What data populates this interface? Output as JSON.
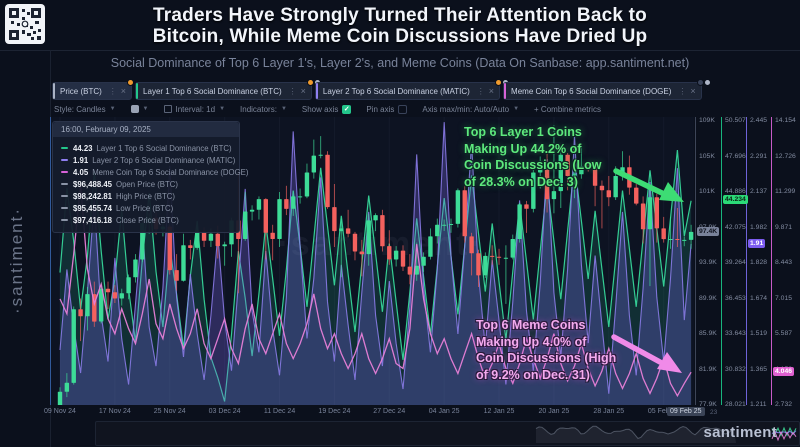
{
  "header": {
    "title_line1": "Traders Have Strongly Turned Their Attention Back to",
    "title_line2": "Bitcoin, While Meme Coin Discussions Have Dried Up",
    "subtitle": "Social Dominance of Top 6 Layer 1's, Layer 2's, and Meme Coins (Data On Sanbase: app.santiment.net)"
  },
  "brand": {
    "vertical_text": "·santiment·",
    "watermark": "·santiment·",
    "minimap_text": "santiment"
  },
  "tabs": [
    {
      "name": "tab-price-btc",
      "label": "Price (BTC)",
      "bar_color": "#aab3c5",
      "active": true,
      "badge": "#f09b2e",
      "badge2": false
    },
    {
      "name": "tab-layer1-dominance",
      "label": "Layer 1 Top 6 Social Dominance (BTC)",
      "bar_color": "#23c68b",
      "active": false,
      "badge": "#f09b2e",
      "badge2": true
    },
    {
      "name": "tab-layer2-dominance",
      "label": "Layer 2 Top 6 Social Dominance (MATIC)",
      "bar_color": "#8f7ff0",
      "active": false,
      "badge": "#f09b2e",
      "badge2": true
    },
    {
      "name": "tab-meme-dominance",
      "label": "Meme Coin Top 6 Social Dominance (DOGE)",
      "bar_color": "#d862d8",
      "active": false,
      "badge": "#39435a",
      "badge2": true
    }
  ],
  "toolbar": [
    {
      "name": "style-select",
      "label": "Style: Candles",
      "caret": true
    },
    {
      "name": "series-color-swatch",
      "swatch": true,
      "caret": true
    },
    {
      "name": "interval-select",
      "label": "Interval: 1d",
      "caret": true,
      "icon": "calendar-icon"
    },
    {
      "name": "indicators-select",
      "label": "Indicators:",
      "caret": true
    },
    {
      "name": "show-axis-toggle",
      "label": "Show axis",
      "checkbox": "checked"
    },
    {
      "name": "pin-axis-toggle",
      "label": "Pin axis",
      "checkbox": "unchecked"
    },
    {
      "name": "axis-maxmin-select",
      "label": "Axis max/min: Auto/Auto",
      "caret": true
    },
    {
      "name": "combine-metrics-button",
      "label": "+ Combine metrics"
    }
  ],
  "tooltip": {
    "timestamp": "16:00, February 09, 2025",
    "rows": [
      {
        "value": "44.23",
        "label": "Layer 1 Top 6 Social Dominance (BTC)",
        "color": "#23c68b"
      },
      {
        "value": "1.91",
        "label": "Layer 2 Top 6 Social Dominance (MATIC)",
        "color": "#8f7ff0"
      },
      {
        "value": "4.05",
        "label": "Meme Coin Top 6 Social Dominance (DOGE)",
        "color": "#d862d8"
      },
      {
        "value": "$96,488.45",
        "label": "Open Price (BTC)",
        "color": "#8a93a6"
      },
      {
        "value": "$98,242.81",
        "label": "High Price (BTC)",
        "color": "#8a93a6"
      },
      {
        "value": "$95,455.74",
        "label": "Low Price (BTC)",
        "color": "#8a93a6"
      },
      {
        "value": "$97,416.18",
        "label": "Close Price (BTC)",
        "color": "#8a93a6"
      }
    ]
  },
  "annotations": {
    "layer1": {
      "lines": [
        "Top 6 Layer 1 Coins",
        "Making Up 44.2% of",
        "Coin Discussions (Low",
        "of 28.3% on Dec. 3)"
      ],
      "color": "#5ee97d"
    },
    "meme": {
      "lines": [
        "Top 6 Meme Coins",
        "Making Up 4.0% of",
        "Coin Discussions (High",
        "of 9.2% on Dec. 31)"
      ],
      "color": "#f4abef"
    }
  },
  "right_axes": [
    {
      "name": "price-axis",
      "x": 1,
      "line_color": "#3d4558",
      "labels": [
        "109K",
        "105K",
        "101K",
        "97.9K",
        "93.9K",
        "89.9K",
        "85.9K",
        "81.9K",
        "77.9K"
      ],
      "range": [
        77.9,
        109.9
      ],
      "badge": {
        "text": "97.4K",
        "value": 97.416,
        "bg": "#79829a",
        "fg": "#10141f"
      }
    },
    {
      "name": "layer1-axis",
      "x": 27,
      "line_color": "#18b57d",
      "labels": [
        "50.507",
        "47.696",
        "44.886",
        "42.075",
        "39.264",
        "36.453",
        "33.643",
        "30.832",
        "28.021"
      ],
      "range": [
        28.021,
        50.507
      ],
      "badge": {
        "text": "44.234",
        "value": 44.234,
        "bg": "#2bd977",
        "fg": "#0c2417"
      }
    },
    {
      "name": "layer2-axis",
      "x": 52,
      "line_color": "#6f63d8",
      "labels": [
        "2.445",
        "2.291",
        "2.137",
        "1.982",
        "1.828",
        "1.674",
        "1.519",
        "1.365",
        "1.211"
      ],
      "range": [
        1.211,
        2.445
      ],
      "badge": {
        "text": "1.91",
        "value": 1.91,
        "bg": "#7c5cf0",
        "fg": "#ffffff"
      }
    },
    {
      "name": "meme-axis",
      "x": 77,
      "line_color": "#c75bc7",
      "labels": [
        "14.154",
        "12.726",
        "11.299",
        "9.871",
        "8.443",
        "7.015",
        "5.587",
        "4.158",
        "2.732"
      ],
      "range": [
        2.732,
        14.154
      ],
      "badge": {
        "text": "4.046",
        "value": 4.046,
        "bg": "#e060d0",
        "fg": "#ffffff"
      }
    }
  ],
  "x_axis": {
    "ticks": [
      "09 Nov 24",
      "17 Nov 24",
      "25 Nov 24",
      "03 Dec 24",
      "11 Dec 24",
      "19 Dec 24",
      "27 Dec 24",
      "04 Jan 25",
      "12 Jan 25",
      "20 Jan 25",
      "28 Jan 25",
      "05 Feb 25"
    ],
    "tick_every_days": 8,
    "current_badge": "09 Feb 25",
    "after_badge": "23"
  },
  "chart_data": {
    "type": "candlestick+lines",
    "days": 93,
    "candle_up_color": "#3ddc97",
    "candle_down_color": "#f4615e",
    "candles_ohlc_kusd": [
      [
        76.7,
        79.9,
        76.2,
        79.4
      ],
      [
        79.4,
        81.5,
        78.8,
        80.4
      ],
      [
        80.4,
        89.0,
        80.2,
        88.7
      ],
      [
        88.7,
        89.9,
        85.1,
        87.9
      ],
      [
        87.9,
        91.2,
        86.3,
        90.4
      ],
      [
        90.4,
        91.8,
        86.7,
        87.3
      ],
      [
        87.3,
        91.5,
        87.1,
        91.0
      ],
      [
        91.0,
        91.8,
        88.7,
        90.6
      ],
      [
        90.6,
        91.4,
        89.4,
        89.9
      ],
      [
        89.9,
        91.0,
        89.1,
        90.5
      ],
      [
        90.5,
        92.6,
        89.8,
        92.3
      ],
      [
        92.3,
        94.9,
        91.7,
        94.3
      ],
      [
        94.3,
        98.9,
        94.0,
        98.4
      ],
      [
        98.4,
        99.5,
        97.2,
        99.0
      ],
      [
        99.0,
        99.6,
        97.1,
        97.7
      ],
      [
        97.7,
        98.6,
        96.9,
        98.0
      ],
      [
        98.0,
        98.2,
        92.6,
        93.1
      ],
      [
        93.1,
        94.9,
        90.8,
        91.9
      ],
      [
        91.9,
        97.2,
        91.8,
        95.9
      ],
      [
        95.9,
        96.5,
        94.3,
        95.6
      ],
      [
        95.6,
        98.0,
        95.4,
        97.4
      ],
      [
        97.4,
        97.9,
        95.7,
        96.4
      ],
      [
        96.4,
        97.8,
        95.7,
        97.2
      ],
      [
        97.2,
        98.1,
        94.4,
        95.8
      ],
      [
        95.8,
        96.3,
        93.6,
        96.0
      ],
      [
        96.0,
        99.0,
        94.6,
        98.7
      ],
      [
        98.7,
        104.0,
        90.5,
        96.6
      ],
      [
        96.6,
        101.9,
        96.4,
        99.7
      ],
      [
        99.7,
        100.4,
        98.7,
        99.9
      ],
      [
        99.9,
        101.4,
        98.8,
        101.1
      ],
      [
        101.1,
        101.2,
        94.3,
        97.3
      ],
      [
        97.3,
        98.2,
        94.2,
        96.6
      ],
      [
        96.6,
        101.9,
        95.7,
        101.1
      ],
      [
        101.1,
        102.6,
        99.3,
        100.0
      ],
      [
        100.0,
        102.0,
        99.2,
        101.4
      ],
      [
        101.4,
        102.3,
        100.6,
        101.4
      ],
      [
        101.4,
        105.1,
        101.2,
        104.1
      ],
      [
        104.1,
        107.8,
        103.4,
        106.0
      ],
      [
        106.0,
        108.2,
        105.7,
        106.1
      ],
      [
        106.1,
        106.5,
        100.0,
        100.2
      ],
      [
        100.2,
        102.8,
        95.7,
        97.5
      ],
      [
        97.5,
        98.9,
        92.3,
        97.8
      ],
      [
        97.8,
        99.9,
        96.8,
        97.2
      ],
      [
        97.2,
        97.4,
        94.2,
        95.2
      ],
      [
        95.2,
        96.5,
        92.4,
        94.9
      ],
      [
        94.9,
        99.4,
        93.6,
        98.7
      ],
      [
        98.7,
        99.5,
        97.5,
        99.3
      ],
      [
        99.3,
        99.9,
        95.2,
        95.8
      ],
      [
        95.8,
        97.6,
        93.7,
        94.3
      ],
      [
        94.3,
        95.8,
        93.5,
        95.3
      ],
      [
        95.3,
        95.9,
        93.0,
        93.5
      ],
      [
        93.5,
        94.9,
        91.5,
        92.6
      ],
      [
        92.6,
        96.2,
        91.9,
        93.6
      ],
      [
        93.6,
        95.1,
        92.9,
        94.6
      ],
      [
        94.6,
        97.8,
        94.3,
        96.9
      ],
      [
        96.9,
        98.9,
        96.1,
        98.2
      ],
      [
        98.2,
        98.8,
        97.5,
        98.2
      ],
      [
        98.2,
        98.9,
        97.3,
        98.3
      ],
      [
        98.3,
        102.3,
        97.9,
        102.1
      ],
      [
        102.1,
        102.7,
        96.2,
        96.9
      ],
      [
        96.9,
        97.3,
        92.5,
        95.0
      ],
      [
        95.0,
        95.4,
        91.2,
        92.5
      ],
      [
        92.5,
        95.1,
        92.2,
        94.7
      ],
      [
        94.7,
        95.9,
        93.7,
        94.6
      ],
      [
        94.6,
        95.5,
        93.7,
        94.5
      ],
      [
        94.5,
        95.9,
        89.3,
        94.5
      ],
      [
        94.5,
        97.1,
        94.3,
        96.6
      ],
      [
        96.6,
        100.7,
        96.2,
        100.5
      ],
      [
        100.5,
        100.9,
        97.3,
        100.0
      ],
      [
        100.0,
        104.9,
        99.6,
        104.1
      ],
      [
        104.1,
        105.9,
        102.3,
        104.5
      ],
      [
        104.5,
        106.4,
        99.6,
        101.1
      ],
      [
        101.1,
        109.4,
        99.5,
        102.0
      ],
      [
        102.0,
        107.1,
        100.1,
        106.1
      ],
      [
        106.1,
        106.3,
        102.1,
        103.7
      ],
      [
        103.7,
        104.5,
        101.2,
        103.9
      ],
      [
        103.9,
        107.1,
        103.4,
        104.8
      ],
      [
        104.8,
        105.3,
        104.2,
        104.7
      ],
      [
        104.7,
        105.0,
        100.3,
        102.6
      ],
      [
        102.6,
        103.2,
        97.8,
        102.1
      ],
      [
        102.1,
        103.7,
        100.3,
        101.3
      ],
      [
        101.3,
        104.8,
        101.0,
        103.7
      ],
      [
        103.7,
        106.5,
        103.2,
        104.7
      ],
      [
        104.7,
        106.0,
        101.6,
        102.4
      ],
      [
        102.4,
        102.8,
        100.4,
        100.6
      ],
      [
        100.6,
        101.4,
        96.1,
        97.7
      ],
      [
        97.7,
        102.5,
        91.3,
        101.3
      ],
      [
        101.3,
        101.7,
        96.2,
        97.8
      ],
      [
        97.8,
        99.1,
        96.2,
        96.6
      ],
      [
        96.6,
        99.1,
        95.5,
        96.6
      ],
      [
        96.6,
        100.1,
        95.7,
        96.5
      ],
      [
        96.5,
        96.9,
        95.8,
        96.5
      ],
      [
        96.5,
        98.2,
        95.5,
        97.4
      ]
    ],
    "series": [
      {
        "name": "Layer 1 Top 6 Social Dominance (BTC)",
        "axis": 1,
        "color": "#38e0a0",
        "fill": "rgba(42,200,148,0.16)",
        "values": [
          38.5,
          45.2,
          41.0,
          35.6,
          39.8,
          46.5,
          40.2,
          34.8,
          38.0,
          43.5,
          37.2,
          33.0,
          39.5,
          44.8,
          38.6,
          34.2,
          40.5,
          36.8,
          32.5,
          38.2,
          42.6,
          36.4,
          31.8,
          30.2,
          28.3,
          33.6,
          40.2,
          36.5,
          31.9,
          36.8,
          42.4,
          38.0,
          33.5,
          38.8,
          45.0,
          40.6,
          35.8,
          41.2,
          46.8,
          42.2,
          37.5,
          43.0,
          38.4,
          33.8,
          39.2,
          44.6,
          40.0,
          35.4,
          40.8,
          36.2,
          31.6,
          37.0,
          42.8,
          38.2,
          33.6,
          39.0,
          44.4,
          39.8,
          35.2,
          40.6,
          46.2,
          41.6,
          37.0,
          42.4,
          37.8,
          33.2,
          38.6,
          44.0,
          39.4,
          34.8,
          40.2,
          45.6,
          41.0,
          36.4,
          41.8,
          47.2,
          42.6,
          38.0,
          43.4,
          38.8,
          34.2,
          39.6,
          45.0,
          40.4,
          35.8,
          41.2,
          46.6,
          42.0,
          37.4,
          42.8,
          48.2,
          41.4,
          44.2
        ]
      },
      {
        "name": "Layer 2 Top 6 Social Dominance (MATIC)",
        "axis": 2,
        "color": "#8f7ff0",
        "fill": "rgba(118,98,228,0.30)",
        "values": [
          1.45,
          1.8,
          1.55,
          1.35,
          1.7,
          2.1,
          1.6,
          1.4,
          1.85,
          1.5,
          1.3,
          1.65,
          2.0,
          1.55,
          1.38,
          1.72,
          2.25,
          1.68,
          1.42,
          1.78,
          1.52,
          1.32,
          1.6,
          1.95,
          1.58,
          1.36,
          1.74,
          2.15,
          1.62,
          1.44,
          1.88,
          1.54,
          1.34,
          1.68,
          2.4,
          1.9,
          1.5,
          1.76,
          2.2,
          1.66,
          1.4,
          1.82,
          1.56,
          1.32,
          1.7,
          2.05,
          1.6,
          1.38,
          1.75,
          1.48,
          1.28,
          1.64,
          2.3,
          1.72,
          1.44,
          1.8,
          2.44,
          1.86,
          1.52,
          1.9,
          2.35,
          1.78,
          1.46,
          1.84,
          1.58,
          1.3,
          1.66,
          2.1,
          1.62,
          1.36,
          1.74,
          2.28,
          1.7,
          1.42,
          1.8,
          2.38,
          1.82,
          1.48,
          1.86,
          1.56,
          1.26,
          1.64,
          2.05,
          1.6,
          1.34,
          1.72,
          2.18,
          1.68,
          1.4,
          1.76,
          2.24,
          1.58,
          1.91
        ]
      },
      {
        "name": "Meme Coin Top 6 Social Dominance (DOGE)",
        "axis": 3,
        "color": "#e87fd8",
        "fill": "none",
        "values": [
          7.0,
          6.4,
          8.8,
          11.6,
          8.2,
          6.8,
          7.6,
          6.2,
          5.6,
          6.6,
          5.8,
          5.2,
          6.4,
          7.8,
          6.0,
          5.4,
          6.8,
          5.8,
          5.0,
          5.6,
          6.6,
          5.2,
          4.6,
          5.4,
          6.2,
          5.0,
          4.4,
          5.8,
          6.8,
          5.4,
          4.8,
          5.6,
          6.4,
          5.2,
          4.6,
          5.2,
          6.0,
          7.2,
          5.8,
          5.0,
          5.6,
          4.8,
          4.2,
          4.8,
          5.6,
          4.6,
          4.0,
          4.6,
          5.4,
          4.4,
          4.2,
          5.8,
          9.2,
          7.0,
          5.6,
          4.8,
          5.4,
          4.6,
          4.0,
          4.8,
          5.6,
          4.6,
          3.8,
          4.4,
          5.2,
          4.2,
          3.6,
          4.4,
          5.4,
          4.6,
          3.8,
          4.6,
          5.6,
          4.4,
          3.7,
          4.3,
          5.2,
          4.2,
          3.5,
          4.1,
          5.0,
          4.0,
          3.4,
          4.0,
          4.8,
          3.8,
          3.2,
          3.8,
          4.6,
          3.6,
          3.1,
          3.6,
          4.05
        ]
      }
    ]
  }
}
